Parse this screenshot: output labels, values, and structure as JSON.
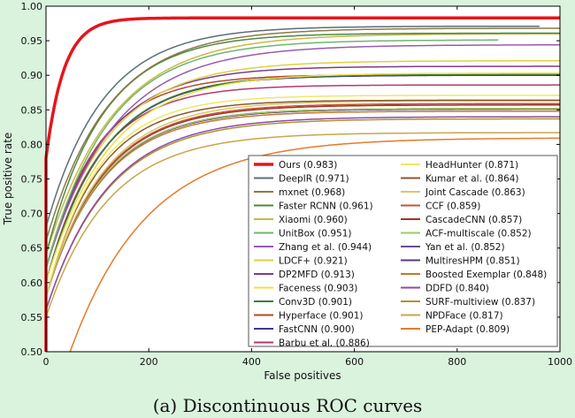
{
  "caption": "(a)  Discontinuous ROC curves",
  "chart_data": {
    "type": "line",
    "title": "",
    "xlabel": "False positives",
    "ylabel": "True positive rate",
    "xlim": [
      0,
      1000
    ],
    "ylim": [
      0.5,
      1.0
    ],
    "xticks": [
      "0",
      "200",
      "400",
      "600",
      "800",
      "1000"
    ],
    "yticks": [
      "0.50",
      "0.55",
      "0.60",
      "0.65",
      "0.70",
      "0.75",
      "0.80",
      "0.85",
      "0.90",
      "0.95",
      "1.00"
    ],
    "grid": false,
    "legend_position": "lower-right",
    "series": [
      {
        "name": "Ours (0.983)",
        "color": "#e4161b",
        "final": 0.983,
        "xmax": 1000,
        "start": 0.78,
        "k": 35,
        "bold": true
      },
      {
        "name": "DeepIR (0.971)",
        "color": "#5a6f77",
        "final": 0.971,
        "xmax": 960,
        "start": 0.68,
        "k": 110
      },
      {
        "name": "mxnet (0.968)",
        "color": "#8a7a4a",
        "final": 0.968,
        "xmax": 1000,
        "start": 0.66,
        "k": 120
      },
      {
        "name": "Faster RCNN (0.961)",
        "color": "#4f8a3c",
        "final": 0.961,
        "xmax": 1000,
        "start": 0.64,
        "k": 110
      },
      {
        "name": "Xiaomi (0.960)",
        "color": "#c9b84a",
        "final": 0.96,
        "xmax": 1000,
        "start": 0.64,
        "k": 130
      },
      {
        "name": "UnitBox (0.951)",
        "color": "#6fb76a",
        "final": 0.951,
        "xmax": 880,
        "start": 0.62,
        "k": 120
      },
      {
        "name": "Zhang et al. (0.944)",
        "color": "#9a5ab0",
        "final": 0.944,
        "xmax": 1000,
        "start": 0.62,
        "k": 130
      },
      {
        "name": "LDCF+ (0.921)",
        "color": "#e0d040",
        "final": 0.921,
        "xmax": 1000,
        "start": 0.62,
        "k": 120
      },
      {
        "name": "DP2MFD (0.913)",
        "color": "#7a3b8f",
        "final": 0.913,
        "xmax": 1000,
        "start": 0.62,
        "k": 110
      },
      {
        "name": "Faceness (0.903)",
        "color": "#ece04a",
        "final": 0.903,
        "xmax": 1000,
        "start": 0.6,
        "k": 120
      },
      {
        "name": "Conv3D (0.901)",
        "color": "#3e7d33",
        "final": 0.901,
        "xmax": 1000,
        "start": 0.6,
        "k": 110
      },
      {
        "name": "Hyperface (0.901)",
        "color": "#b5472c",
        "final": 0.901,
        "xmax": 1000,
        "start": 0.62,
        "k": 100
      },
      {
        "name": "FastCNN (0.900)",
        "color": "#3a3a8c",
        "final": 0.9,
        "xmax": 1000,
        "start": 0.6,
        "k": 110
      },
      {
        "name": "Barbu et al. (0.886)",
        "color": "#b23a6e",
        "final": 0.886,
        "xmax": 1000,
        "start": 0.6,
        "k": 100
      },
      {
        "name": "HeadHunter (0.871)",
        "color": "#f0e66a",
        "final": 0.871,
        "xmax": 1000,
        "start": 0.58,
        "k": 100
      },
      {
        "name": "Kumar et al. (0.864)",
        "color": "#8a5a2c",
        "final": 0.864,
        "xmax": 1000,
        "start": 0.58,
        "k": 100
      },
      {
        "name": "Joint Cascade (0.863)",
        "color": "#d9c76a",
        "final": 0.863,
        "xmax": 1000,
        "start": 0.58,
        "k": 110
      },
      {
        "name": "CCF (0.859)",
        "color": "#c2553a",
        "final": 0.859,
        "xmax": 1000,
        "start": 0.58,
        "k": 110
      },
      {
        "name": "CascadeCNN (0.857)",
        "color": "#a4342a",
        "final": 0.857,
        "xmax": 1000,
        "start": 0.58,
        "k": 110
      },
      {
        "name": "ACF-multiscale (0.852)",
        "color": "#9ccb63",
        "final": 0.852,
        "xmax": 1000,
        "start": 0.58,
        "k": 110
      },
      {
        "name": "Yan et al. (0.852)",
        "color": "#6a4a9a",
        "final": 0.852,
        "xmax": 1000,
        "start": 0.58,
        "k": 110
      },
      {
        "name": "MultiresHPM (0.851)",
        "color": "#5a3a7a",
        "final": 0.851,
        "xmax": 1000,
        "start": 0.58,
        "k": 110
      },
      {
        "name": "Boosted Exemplar (0.848)",
        "color": "#c9762c",
        "final": 0.848,
        "xmax": 1000,
        "start": 0.58,
        "k": 110
      },
      {
        "name": "DDFD (0.840)",
        "color": "#8e4aa8",
        "final": 0.84,
        "xmax": 1000,
        "start": 0.56,
        "k": 120
      },
      {
        "name": "SURF-multiview (0.837)",
        "color": "#b0922c",
        "final": 0.837,
        "xmax": 1000,
        "start": 0.56,
        "k": 120
      },
      {
        "name": "NPDFace (0.817)",
        "color": "#c9a64a",
        "final": 0.817,
        "xmax": 1000,
        "start": 0.55,
        "k": 120
      },
      {
        "name": "PEP-Adapt (0.809)",
        "color": "#e57a2c",
        "final": 0.809,
        "xmax": 1000,
        "start": 0.5,
        "k": 150,
        "x0": 47
      }
    ]
  }
}
